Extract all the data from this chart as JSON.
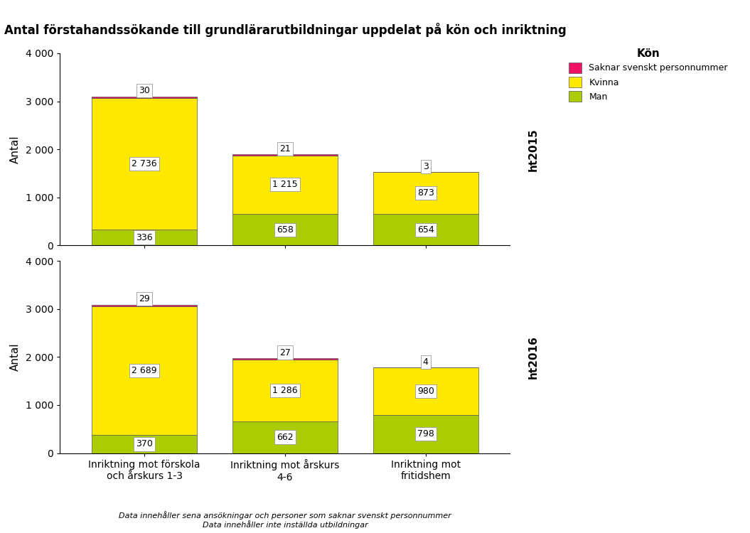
{
  "title": "Antal förstahandssökande till grundlärarutbildningar uppdelat på kön och inriktning",
  "categories": [
    "Inriktning mot förskola\noch årskurs 1-3",
    "Inriktning mot årskurs\n4-6",
    "Inriktning mot\nfritidshem"
  ],
  "years": [
    "ht2015",
    "ht2016"
  ],
  "data": {
    "ht2015": {
      "man": [
        336,
        658,
        654
      ],
      "kvinna": [
        2736,
        1215,
        873
      ],
      "saknar": [
        30,
        21,
        3
      ]
    },
    "ht2016": {
      "man": [
        370,
        662,
        798
      ],
      "kvinna": [
        2689,
        1286,
        980
      ],
      "saknar": [
        29,
        27,
        4
      ]
    }
  },
  "color_man": "#AACC00",
  "color_kvinna": "#FFE800",
  "color_saknar": "#EE1166",
  "ylabel": "Antal",
  "ylim": [
    0,
    4000
  ],
  "yticks": [
    0,
    1000,
    2000,
    3000,
    4000
  ],
  "ytick_labels": [
    "0",
    "1 000",
    "2 000",
    "3 000",
    "4 000"
  ],
  "legend_title": "Kön",
  "legend_labels": [
    "Saknar svenskt personnummer",
    "Kvinna",
    "Man"
  ],
  "footnote1": "Data innehåller sena ansökningar och personer som saknar svenskt personnummer",
  "footnote2": "Data innehåller inte inställda utbildningar",
  "bar_width": 0.75,
  "label_values_2015": {
    "man": [
      "336",
      "658",
      "654"
    ],
    "kvinna": [
      "2 736",
      "1 215",
      "873"
    ],
    "saknar": [
      "30",
      "21",
      "3"
    ]
  },
  "label_values_2016": {
    "man": [
      "370",
      "662",
      "798"
    ],
    "kvinna": [
      "2 689",
      "1 286",
      "980"
    ],
    "saknar": [
      "29",
      "27",
      "4"
    ]
  }
}
